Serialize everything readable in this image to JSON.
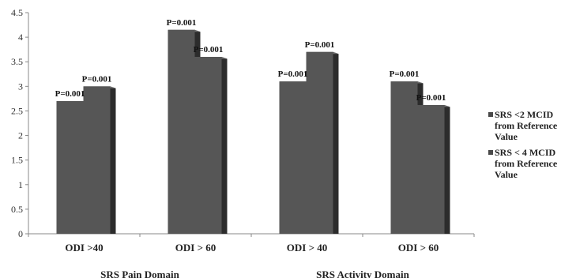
{
  "chart_data": {
    "type": "bar",
    "style": "3d-clustered-column",
    "categories": [
      "ODI >40",
      "ODI > 60",
      "ODI > 40",
      "ODI > 60"
    ],
    "groups": [
      {
        "label": "SRS Pain Domain",
        "categories": [
          0,
          1
        ]
      },
      {
        "label": "SRS Activity Domain",
        "categories": [
          2,
          3
        ]
      }
    ],
    "series": [
      {
        "name": "SRS <2 MCID from Reference Value",
        "values": [
          2.7,
          4.15,
          3.1,
          3.1
        ],
        "labels": [
          "P=0.001",
          "P=0.001",
          "P=0.001",
          "P=0.001"
        ]
      },
      {
        "name": "SRS < 4 MCID from Reference Value",
        "values": [
          3.0,
          3.6,
          3.7,
          2.62
        ],
        "labels": [
          "P=0.001",
          "P=0.001",
          "P=0.001",
          "P=0.001"
        ]
      }
    ],
    "ylim": [
      0,
      4.5
    ],
    "yticks": [
      0,
      0.5,
      1,
      1.5,
      2,
      2.5,
      3,
      3.5,
      4,
      4.5
    ],
    "grid": false,
    "legend_position": "right",
    "colors": {
      "bar_front": "#565656",
      "bar_side": "#2c2c2c",
      "bar_top": "#6e6e6e",
      "axis": "#888888"
    }
  }
}
